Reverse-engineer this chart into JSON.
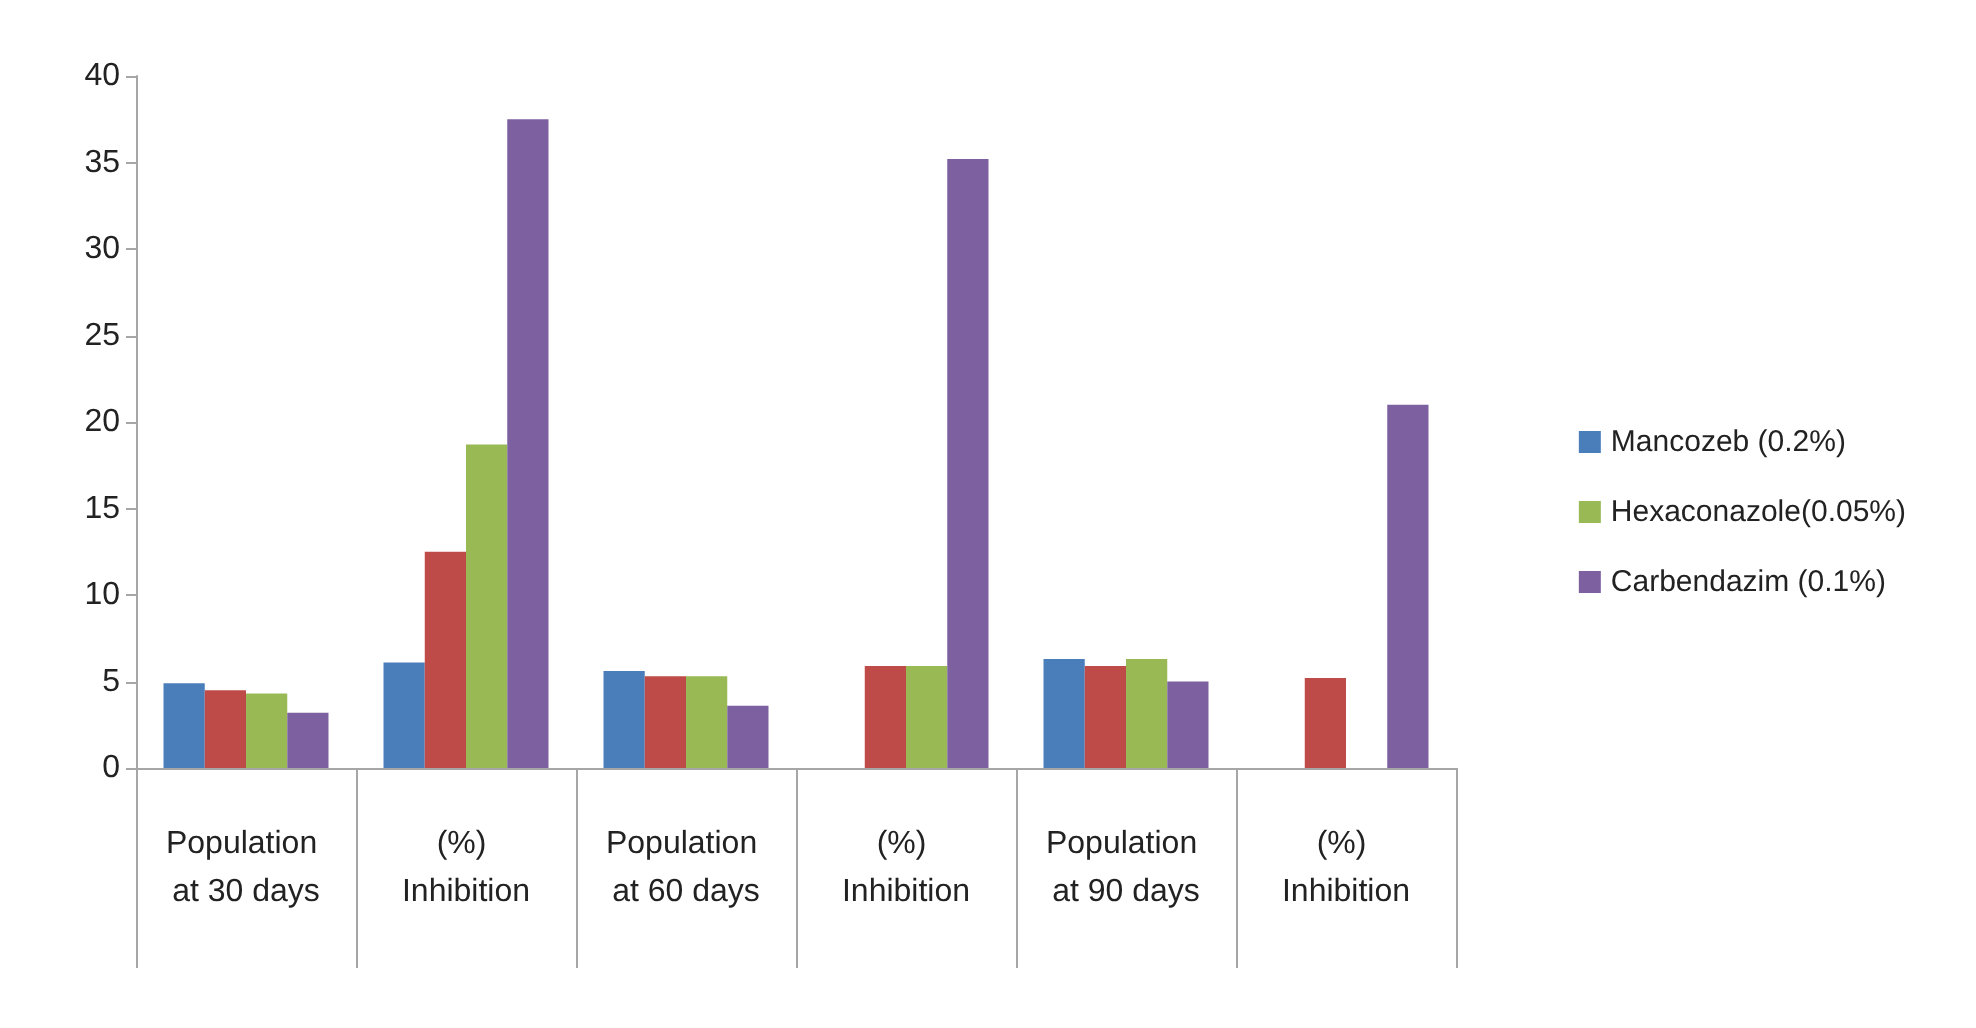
{
  "chart_data": {
    "type": "bar",
    "categories": [
      "Population at 30 days",
      "(%) Inhibition",
      "Population at 60 days",
      "(%) Inhibition",
      "Population at 90 days",
      "(%) Inhibition"
    ],
    "series": [
      {
        "name": "Mancozeb (0.2%)",
        "color": "#4a7ebb",
        "values": [
          4.9,
          6.1,
          5.6,
          null,
          6.3,
          null
        ]
      },
      {
        "color": "#be4b48",
        "values": [
          4.5,
          12.5,
          5.3,
          5.9,
          5.9,
          5.2
        ]
      },
      {
        "name": "Hexaconazole(0.05%)",
        "color": "#98b954",
        "values": [
          4.3,
          18.7,
          5.3,
          5.9,
          6.3,
          null
        ]
      },
      {
        "name": "Carbendazim (0.1%)",
        "color": "#7d60a0",
        "values": [
          3.2,
          37.5,
          3.6,
          35.2,
          5.0,
          21.0
        ]
      }
    ],
    "ylim": [
      0,
      40
    ],
    "yticks": [
      0,
      5,
      10,
      15,
      20,
      25,
      30,
      35,
      40
    ],
    "grid": false,
    "legend": "right"
  }
}
